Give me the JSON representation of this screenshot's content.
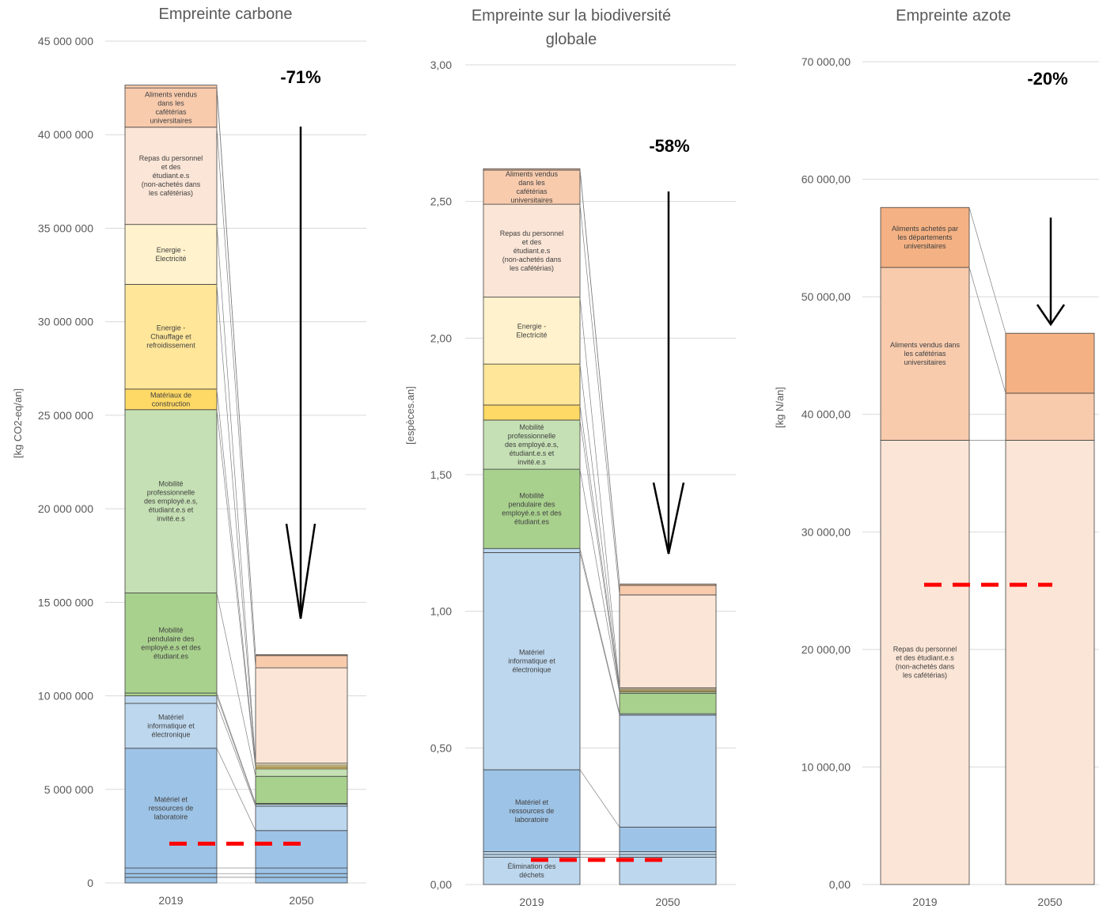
{
  "colors": {
    "aliments": "#f8cbad",
    "aliments_dark": "#f4b183",
    "repas": "#fbe5d6",
    "elec": "#fff2cc",
    "chauffage": "#ffe699",
    "materiaux": "#ffd966",
    "mob_pro": "#c5e0b4",
    "mob_pend": "#a9d18e",
    "info": "#bdd7ee",
    "labo": "#9dc3e6",
    "other": "#bdd7ee",
    "target_line": "#ff0000",
    "grid": "#d9d9d9",
    "outline": "#404040"
  },
  "chart_data": [
    {
      "type": "bar",
      "title": "Empreinte carbone",
      "ylabel": "[kg CO2-eq/an]",
      "ylim": [
        0,
        45000000
      ],
      "yticks": [
        0,
        5000000,
        10000000,
        15000000,
        20000000,
        25000000,
        30000000,
        35000000,
        40000000,
        45000000
      ],
      "yticklabels": [
        "0",
        "5 000 000",
        "10 000 000",
        "15 000 000",
        "20 000 000",
        "25 000 000",
        "30 000 000",
        "35 000 000",
        "40 000 000",
        "45 000 000"
      ],
      "categories": [
        "2019",
        "2050"
      ],
      "reduction_label": "-71%",
      "target_value": 2100000,
      "stacks": [
        [
          {
            "key": "c1",
            "value": 300000,
            "color": "labo",
            "label": ""
          },
          {
            "key": "c2",
            "value": 200000,
            "color": "labo",
            "label": ""
          },
          {
            "key": "c3",
            "value": 300000,
            "color": "labo",
            "label": ""
          },
          {
            "key": "c4",
            "value": 6400000,
            "color": "labo",
            "label": "Matériel et ressources de laboratoire"
          },
          {
            "key": "c5",
            "value": 2400000,
            "color": "info",
            "label": "Matériel informatique et électronique"
          },
          {
            "key": "c6",
            "value": 400000,
            "color": "info",
            "label": ""
          },
          {
            "key": "c7",
            "value": 150000,
            "color": "mob_pend",
            "label": ""
          },
          {
            "key": "c8",
            "value": 5350000,
            "color": "mob_pend",
            "label": "Mobilité pendulaire des employé.e.s et des étudiant.es"
          },
          {
            "key": "c9",
            "value": 9800000,
            "color": "mob_pro",
            "label": "Mobilité professionnelle des employé.e.s, étudiant.e.s et invité.e.s"
          },
          {
            "key": "c10",
            "value": 1100000,
            "color": "materiaux",
            "label": "Matériaux de construction"
          },
          {
            "key": "c11",
            "value": 5600000,
            "color": "chauffage",
            "label": "Energie - Chauffage et refroidissement"
          },
          {
            "key": "c12",
            "value": 3200000,
            "color": "elec",
            "label": "Energie - Electricité"
          },
          {
            "key": "c13",
            "value": 5200000,
            "color": "repas",
            "label": "Repas du personnel et des étudiant.e.s (non-achetés dans les cafétérias)"
          },
          {
            "key": "c14",
            "value": 2100000,
            "color": "aliments",
            "label": "Aliments vendus dans les cafétérias universitaires"
          },
          {
            "key": "c15",
            "value": 150000,
            "color": "aliments",
            "label": ""
          }
        ],
        [
          {
            "key": "c1",
            "value": 300000,
            "color": "labo",
            "label": ""
          },
          {
            "key": "c2",
            "value": 200000,
            "color": "labo",
            "label": ""
          },
          {
            "key": "c3",
            "value": 300000,
            "color": "labo",
            "label": ""
          },
          {
            "key": "c4",
            "value": 2000000,
            "color": "labo",
            "label": ""
          },
          {
            "key": "c5",
            "value": 1300000,
            "color": "info",
            "label": ""
          },
          {
            "key": "c6",
            "value": 100000,
            "color": "info",
            "label": ""
          },
          {
            "key": "c7",
            "value": 50000,
            "color": "mob_pend",
            "label": ""
          },
          {
            "key": "c8",
            "value": 1450000,
            "color": "mob_pend",
            "label": ""
          },
          {
            "key": "c9",
            "value": 400000,
            "color": "mob_pro",
            "label": ""
          },
          {
            "key": "c10",
            "value": 100000,
            "color": "materiaux",
            "label": ""
          },
          {
            "key": "c11",
            "value": 100000,
            "color": "chauffage",
            "label": ""
          },
          {
            "key": "c12",
            "value": 100000,
            "color": "elec",
            "label": ""
          },
          {
            "key": "c13",
            "value": 5100000,
            "color": "repas",
            "label": ""
          },
          {
            "key": "c14",
            "value": 650000,
            "color": "aliments",
            "label": ""
          },
          {
            "key": "c15",
            "value": 50000,
            "color": "aliments",
            "label": ""
          }
        ]
      ]
    },
    {
      "type": "bar",
      "title": "Empreinte sur la biodiversité globale",
      "ylabel": "[espèces.an]",
      "ylim": [
        0,
        3
      ],
      "yticks": [
        0,
        0.5,
        1,
        1.5,
        2,
        2.5,
        3
      ],
      "yticklabels": [
        "0,00",
        "0,50",
        "1,00",
        "1,50",
        "2,00",
        "2,50",
        "3,00"
      ],
      "categories": [
        "2019",
        "2050"
      ],
      "reduction_label": "-58%",
      "target_value": 0.09,
      "stacks": [
        [
          {
            "key": "b1",
            "value": 0.1,
            "color": "other",
            "label": "Élimination des déchets"
          },
          {
            "key": "b2",
            "value": 0.01,
            "color": "other",
            "label": ""
          },
          {
            "key": "b3",
            "value": 0.01,
            "color": "other",
            "label": ""
          },
          {
            "key": "b4",
            "value": 0.3,
            "color": "labo",
            "label": "Matériel et ressources de laboratoire"
          },
          {
            "key": "b5",
            "value": 0.795,
            "color": "info",
            "label": "Matériel informatique et électronique"
          },
          {
            "key": "b6",
            "value": 0.015,
            "color": "info",
            "label": ""
          },
          {
            "key": "b7",
            "value": 0.29,
            "color": "mob_pend",
            "label": "Mobilité pendulaire des employé.e.s et des étudiant.es"
          },
          {
            "key": "b8",
            "value": 0.18,
            "color": "mob_pro",
            "label": "Mobilité professionnelle des employé.e.s, étudiant.e.s et invité.e.s"
          },
          {
            "key": "b9",
            "value": 0.055,
            "color": "materiaux",
            "label": ""
          },
          {
            "key": "b10",
            "value": 0.15,
            "color": "chauffage",
            "label": ""
          },
          {
            "key": "b11",
            "value": 0.245,
            "color": "elec",
            "label": "Energie - Electricité"
          },
          {
            "key": "b12",
            "value": 0.34,
            "color": "repas",
            "label": "Repas du personnel et des étudiant.e.s (non-achetés dans les cafétérias)"
          },
          {
            "key": "b13",
            "value": 0.125,
            "color": "aliments",
            "label": "Aliments vendus dans les cafétérias universitaires"
          },
          {
            "key": "b14",
            "value": 0.005,
            "color": "aliments",
            "label": ""
          }
        ],
        [
          {
            "key": "b1",
            "value": 0.1,
            "color": "other",
            "label": ""
          },
          {
            "key": "b2",
            "value": 0.01,
            "color": "other",
            "label": ""
          },
          {
            "key": "b3",
            "value": 0.01,
            "color": "other",
            "label": ""
          },
          {
            "key": "b4",
            "value": 0.09,
            "color": "labo",
            "label": ""
          },
          {
            "key": "b5",
            "value": 0.41,
            "color": "info",
            "label": ""
          },
          {
            "key": "b6",
            "value": 0.005,
            "color": "info",
            "label": ""
          },
          {
            "key": "b7",
            "value": 0.075,
            "color": "mob_pend",
            "label": ""
          },
          {
            "key": "b8",
            "value": 0.005,
            "color": "mob_pro",
            "label": ""
          },
          {
            "key": "b9",
            "value": 0.005,
            "color": "materiaux",
            "label": ""
          },
          {
            "key": "b10",
            "value": 0.005,
            "color": "chauffage",
            "label": ""
          },
          {
            "key": "b11",
            "value": 0.005,
            "color": "elec",
            "label": ""
          },
          {
            "key": "b12",
            "value": 0.34,
            "color": "repas",
            "label": ""
          },
          {
            "key": "b13",
            "value": 0.035,
            "color": "aliments",
            "label": ""
          },
          {
            "key": "b14",
            "value": 0.005,
            "color": "aliments",
            "label": ""
          }
        ]
      ]
    },
    {
      "type": "bar",
      "title": "Empreinte azote",
      "ylabel": "[kg N/an]",
      "ylim": [
        0,
        70000
      ],
      "yticks": [
        0,
        10000,
        20000,
        30000,
        40000,
        50000,
        60000,
        70000
      ],
      "yticklabels": [
        "0,00",
        "10 000,00",
        "20 000,00",
        "30 000,00",
        "40 000,00",
        "50 000,00",
        "60 000,00",
        "70 000,00"
      ],
      "categories": [
        "2019",
        "2050"
      ],
      "reduction_label": "-20%",
      "target_value": 25500,
      "stacks": [
        [
          {
            "key": "n1",
            "value": 37800,
            "color": "repas",
            "label": "Repas du personnel et des étudiant.e.s (non-achetés dans les cafétérias)"
          },
          {
            "key": "n2",
            "value": 14700,
            "color": "aliments",
            "label": "Aliments vendus dans les cafétérias universitaires"
          },
          {
            "key": "n3",
            "value": 5100,
            "color": "aliments_dark",
            "label": "Aliments achetés par les départements universitaires"
          }
        ],
        [
          {
            "key": "n1",
            "value": 37800,
            "color": "repas",
            "label": ""
          },
          {
            "key": "n2",
            "value": 4000,
            "color": "aliments",
            "label": ""
          },
          {
            "key": "n3",
            "value": 5100,
            "color": "aliments_dark",
            "label": ""
          }
        ]
      ]
    }
  ]
}
